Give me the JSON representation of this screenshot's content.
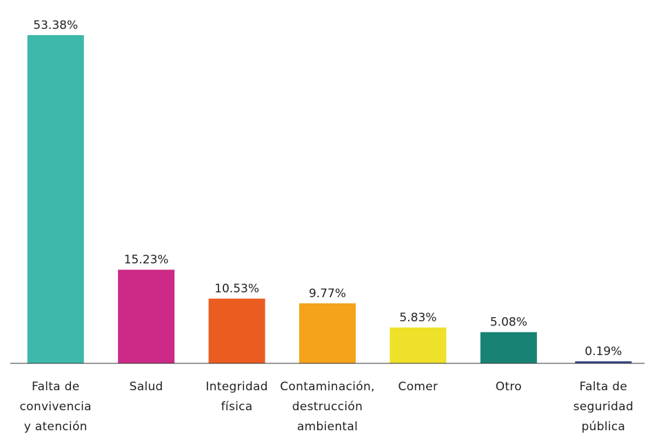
{
  "chart_data": {
    "type": "bar",
    "categories": [
      [
        "Falta de",
        "convivencia",
        "y atención"
      ],
      [
        "Salud"
      ],
      [
        "Integridad",
        "física"
      ],
      [
        "Contaminación,",
        "destrucción",
        "ambiental"
      ],
      [
        "Comer"
      ],
      [
        "Otro"
      ],
      [
        "Falta de",
        "seguridad",
        "pública"
      ]
    ],
    "values": [
      53.38,
      15.23,
      10.53,
      9.77,
      5.83,
      5.08,
      0.19
    ],
    "value_labels": [
      "53.38%",
      "15.23%",
      "10.53%",
      "9.77%",
      "5.83%",
      "5.08%",
      "0.19%"
    ],
    "colors": [
      "#3db8aa",
      "#cc2a86",
      "#ea5d21",
      "#f4a31b",
      "#efe02a",
      "#188374",
      "#3a4a8a"
    ],
    "ylim": [
      0,
      53.38
    ],
    "grid": false,
    "legend": "none"
  }
}
